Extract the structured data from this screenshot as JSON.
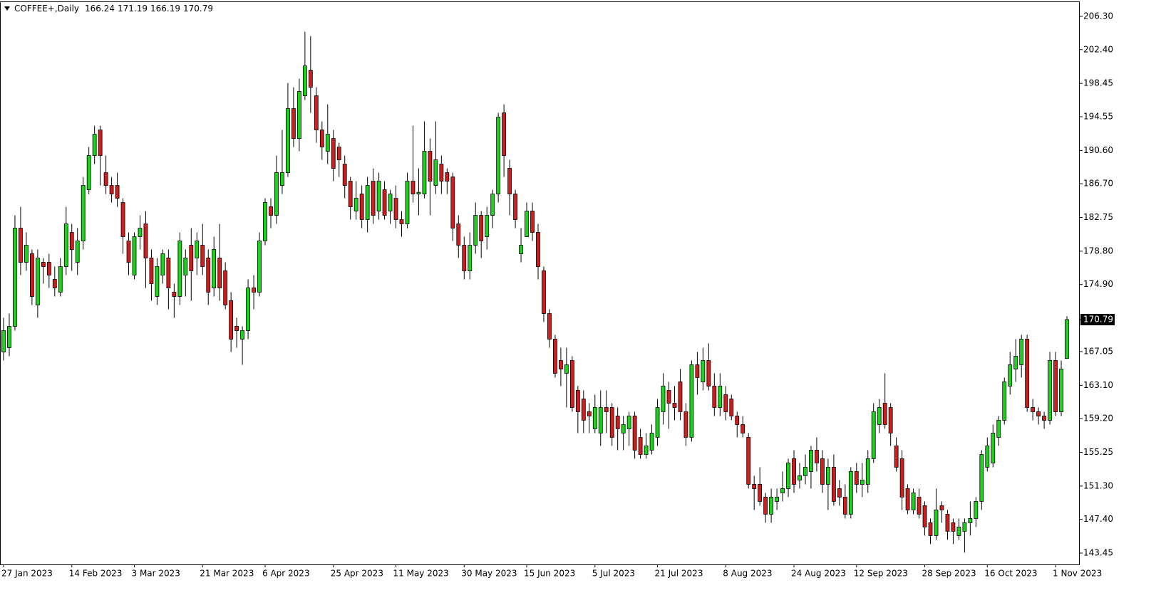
{
  "chart_data": {
    "type": "candlestick",
    "symbol": "COFFEE+,Daily",
    "up_color": "#1ad41a",
    "down_color": "#d01e1e",
    "wick_color": "#000000",
    "grid": false,
    "ylim": [
      142.12,
      208.05
    ],
    "yticks": [
      {
        "value": 206.3,
        "label": "206.30"
      },
      {
        "value": 202.4,
        "label": "202.40"
      },
      198.45,
      194.55,
      {
        "value": 190.6,
        "label": "190.60"
      },
      {
        "value": 186.7,
        "label": "186.70"
      },
      182.75,
      {
        "value": 178.8,
        "label": "178.80"
      },
      {
        "value": 174.9,
        "label": "174.90"
      },
      167.05,
      {
        "value": 163.1,
        "label": "163.10"
      },
      {
        "value": 159.2,
        "label": "159.20"
      },
      155.25,
      {
        "value": 151.3,
        "label": "151.30"
      },
      {
        "value": 147.4,
        "label": "147.40"
      },
      143.45
    ],
    "categories": [
      "27 Jan 2023",
      null,
      null,
      null,
      null,
      null,
      null,
      null,
      null,
      null,
      null,
      null,
      "14 Feb 2023",
      null,
      null,
      null,
      null,
      null,
      null,
      null,
      null,
      null,
      null,
      "3 Mar 2023",
      null,
      null,
      null,
      null,
      null,
      null,
      null,
      null,
      null,
      null,
      null,
      "21 Mar 2023",
      null,
      null,
      null,
      null,
      null,
      null,
      null,
      null,
      null,
      null,
      "6 Apr 2023",
      null,
      null,
      null,
      null,
      null,
      null,
      null,
      null,
      null,
      null,
      null,
      "25 Apr 2023",
      null,
      null,
      null,
      null,
      null,
      null,
      null,
      null,
      null,
      null,
      "11 May 2023",
      null,
      null,
      null,
      null,
      null,
      null,
      null,
      null,
      null,
      null,
      null,
      "30 May 2023",
      null,
      null,
      null,
      null,
      null,
      null,
      null,
      null,
      null,
      null,
      "15 Jun 2023",
      null,
      null,
      null,
      null,
      null,
      null,
      null,
      null,
      null,
      null,
      null,
      "5 Jul 2023",
      null,
      null,
      null,
      null,
      null,
      null,
      null,
      null,
      null,
      null,
      "21 Jul 2023",
      null,
      null,
      null,
      null,
      null,
      null,
      null,
      null,
      null,
      null,
      null,
      "8 Aug 2023",
      null,
      null,
      null,
      null,
      null,
      null,
      null,
      null,
      null,
      null,
      null,
      "24 Aug 2023",
      null,
      null,
      null,
      null,
      null,
      null,
      null,
      null,
      null,
      null,
      "12 Sep 2023",
      null,
      null,
      null,
      null,
      null,
      null,
      null,
      null,
      null,
      null,
      null,
      "28 Sep 2023",
      null,
      null,
      null,
      null,
      null,
      null,
      null,
      null,
      null,
      null,
      "16 Oct 2023",
      null,
      null,
      null,
      null,
      null,
      null,
      null,
      null,
      null,
      null,
      null,
      "1 Nov 2023",
      null,
      null
    ],
    "open": [
      167,
      167.5,
      170,
      181.5,
      177.5,
      178.5,
      172.5,
      177.5,
      177.5,
      175.5,
      174,
      177,
      181,
      177.5,
      180,
      186,
      190,
      193,
      188,
      186.5,
      186.5,
      184.5,
      180,
      176,
      180.5,
      182,
      178,
      173.5,
      176,
      178,
      174,
      173.5,
      176,
      179.5,
      178,
      179.5,
      178,
      174.5,
      178,
      176.5,
      173,
      170,
      168.5,
      169.5,
      174.5,
      174,
      180,
      184,
      183,
      186.5,
      188,
      195.5,
      192,
      197,
      200,
      197,
      193,
      190.5,
      192,
      191,
      189,
      187,
      183.5,
      185.5,
      182.5,
      187,
      183.5,
      186,
      183.5,
      185,
      182.5,
      182,
      187,
      185.5,
      185.5,
      190.5,
      186.5,
      189,
      188,
      187.5,
      182,
      179.5,
      176.5,
      179.5,
      183,
      180.5,
      183,
      185.5,
      195,
      188.5,
      185.5,
      178.5,
      180.5,
      183.5,
      181,
      176.5,
      171.5,
      168.5,
      166,
      164.5,
      166,
      162.5,
      161.5,
      160,
      158,
      157.5,
      160.5,
      160.5,
      159.5,
      157.5,
      158,
      159.5,
      157,
      155,
      155.5,
      157,
      160,
      162.5,
      161,
      163.5,
      160,
      157,
      165.5,
      163.5,
      166,
      163,
      160.5,
      162,
      161.5,
      159.5,
      158.5,
      157,
      151.5,
      151.5,
      150,
      148,
      149.5,
      150.5,
      151,
      154.5,
      152,
      152.5,
      153,
      155.5,
      154.5,
      151.5,
      153.5,
      151,
      150,
      148,
      153,
      151.5,
      151.5,
      154.5,
      158.5,
      161,
      160.5,
      156,
      154.5,
      151,
      148.5,
      150,
      149,
      147,
      145.5,
      149,
      148,
      147,
      145.5,
      146,
      147,
      147.5,
      149.5,
      153.5,
      154,
      157,
      159,
      163,
      165,
      165.5,
      168.5,
      160.5,
      160,
      159.5,
      159,
      166,
      160,
      166.24
    ],
    "high": [
      171,
      171.5,
      183,
      184,
      181,
      179,
      179,
      178,
      178.5,
      177,
      178,
      184,
      182,
      181.5,
      187.5,
      191,
      193.5,
      193.5,
      190,
      187.5,
      188,
      185,
      181,
      181,
      183,
      183.5,
      179,
      178,
      179,
      179,
      175,
      181,
      179,
      181.5,
      181,
      182,
      179,
      180.5,
      182,
      177.5,
      174,
      171,
      170,
      175.5,
      176,
      181,
      185,
      185,
      190,
      193,
      198.5,
      198,
      199,
      204.5,
      204,
      198,
      194,
      196,
      193,
      191.5,
      190,
      187.5,
      187,
      186.5,
      187.5,
      188.5,
      188,
      187,
      186,
      186.5,
      183.5,
      188,
      193.5,
      188.5,
      194,
      192,
      194,
      190,
      188.5,
      188,
      183,
      180.5,
      181,
      184.5,
      183.5,
      184,
      186,
      195,
      196,
      189.5,
      186,
      181.5,
      184.5,
      184.5,
      182,
      177,
      172,
      169,
      167.5,
      167.5,
      166.5,
      163,
      162.5,
      161,
      162,
      162.5,
      162.5,
      161,
      160.5,
      159.5,
      160,
      160,
      158,
      157.5,
      158.5,
      161.5,
      164.5,
      163.5,
      163,
      165,
      161,
      166,
      167,
      167.5,
      168,
      164.5,
      164.5,
      163,
      162,
      160,
      159.5,
      157.5,
      152.5,
      153.5,
      150.5,
      151,
      151,
      153,
      154.5,
      155.5,
      154,
      155,
      156,
      157,
      155.5,
      154.5,
      155,
      152,
      151.5,
      153.5,
      154,
      154,
      155.5,
      161,
      161.5,
      164.5,
      161,
      157,
      155.5,
      151.5,
      151,
      151,
      149.5,
      147.5,
      151,
      149.5,
      148.5,
      147.5,
      147.5,
      147.5,
      149.5,
      150,
      155.5,
      157,
      158.5,
      159.5,
      164,
      167,
      168.5,
      169,
      169,
      161.5,
      160.5,
      160,
      167,
      167,
      166,
      171.19
    ],
    "low": [
      166,
      166.5,
      169.5,
      176,
      176.5,
      172.5,
      171,
      175,
      174.5,
      173.5,
      173.5,
      176,
      176.5,
      176,
      179,
      185.5,
      189,
      186.5,
      185.5,
      184.5,
      184,
      178.5,
      176,
      175.5,
      179,
      174.5,
      173,
      172.5,
      175,
      172,
      171,
      172.5,
      173.5,
      173,
      176,
      176,
      172.5,
      173.5,
      173,
      172,
      167,
      167.5,
      165.5,
      168.5,
      172,
      173.5,
      179.5,
      181.5,
      182,
      185.5,
      187.5,
      191,
      190.5,
      196.5,
      195,
      191.5,
      189.5,
      189,
      187,
      187.5,
      185,
      182.5,
      182.5,
      181.5,
      181,
      182,
      182.5,
      182.5,
      182,
      181.5,
      180.5,
      181.5,
      184.5,
      183,
      185,
      183,
      185.5,
      185.5,
      185.5,
      180,
      178,
      175.5,
      175.5,
      178.5,
      178,
      179,
      181.5,
      184.5,
      187.5,
      183,
      181.5,
      177.5,
      180.5,
      180,
      175.5,
      170.5,
      167.5,
      164,
      163,
      160.5,
      160,
      157.5,
      157.5,
      157.5,
      157.5,
      156,
      157.5,
      156,
      155.5,
      155.5,
      156,
      154.5,
      154.5,
      154.5,
      155,
      156,
      158.5,
      158,
      159,
      159,
      156,
      156.5,
      162,
      162.5,
      162.5,
      159.5,
      159.5,
      159,
      159,
      157,
      157,
      151,
      148.5,
      149,
      147,
      147,
      148.5,
      149.5,
      150,
      150.5,
      151,
      151.5,
      151,
      153,
      150.5,
      148.5,
      149,
      149,
      147.5,
      147.5,
      150.5,
      150,
      150.5,
      154,
      157.5,
      158,
      156,
      153,
      148.5,
      148,
      148,
      147.5,
      145.5,
      144.5,
      145,
      147,
      145,
      144.5,
      145,
      143.5,
      145.5,
      146.5,
      148.5,
      153,
      153.5,
      156,
      158.5,
      162,
      163.5,
      164,
      160,
      159,
      158.5,
      158,
      158.5,
      159.5,
      159.5,
      166.19
    ],
    "close": [
      169.5,
      170,
      181.5,
      177.5,
      179.5,
      173.5,
      178,
      177,
      176,
      174.5,
      177,
      182,
      179,
      180,
      186.5,
      190,
      192.5,
      190,
      186.5,
      185.5,
      185,
      180.5,
      177.5,
      180.5,
      181.5,
      178,
      175,
      177,
      178.5,
      174.5,
      173.5,
      180,
      178,
      176.5,
      180,
      177,
      174,
      179,
      174.5,
      172.5,
      168.5,
      169.5,
      169.5,
      174.5,
      174,
      180,
      184.5,
      183,
      188,
      188,
      195.5,
      192,
      197.5,
      200.5,
      198,
      193,
      191,
      192.5,
      188.5,
      189.5,
      186.5,
      184,
      185,
      182.5,
      186.5,
      183,
      187,
      183,
      185.5,
      182.5,
      182,
      187,
      185.5,
      185.7,
      190.5,
      187,
      189.5,
      187,
      187,
      181.5,
      179.5,
      176.5,
      179.5,
      183,
      180,
      183,
      185.5,
      194.5,
      190,
      185.5,
      182.5,
      179.5,
      183.5,
      181,
      177,
      171.5,
      168.5,
      164.5,
      165,
      165.5,
      160.5,
      160,
      159,
      159.5,
      160.5,
      160.5,
      160,
      157,
      158,
      158.5,
      159.5,
      155.5,
      155,
      156,
      157.5,
      160.5,
      163,
      161,
      160.5,
      160,
      157,
      165.5,
      164,
      166,
      163,
      160.5,
      163,
      160,
      159.5,
      158.5,
      157.5,
      151.5,
      151,
      149.5,
      148,
      150,
      150,
      151,
      154,
      151.5,
      152.5,
      153.5,
      155.5,
      154,
      151.5,
      153.5,
      149.5,
      150,
      148,
      153,
      151.5,
      152,
      154.5,
      160,
      160.5,
      158.5,
      157.5,
      153.5,
      150,
      148.5,
      150.5,
      148,
      146.5,
      145.5,
      148.5,
      148.5,
      146,
      146,
      146.5,
      147,
      147.5,
      149.5,
      155,
      156,
      157.5,
      159,
      163.5,
      165.5,
      166.5,
      168.5,
      160.5,
      160,
      159.5,
      159,
      166,
      160,
      165,
      170.79
    ]
  }
}
